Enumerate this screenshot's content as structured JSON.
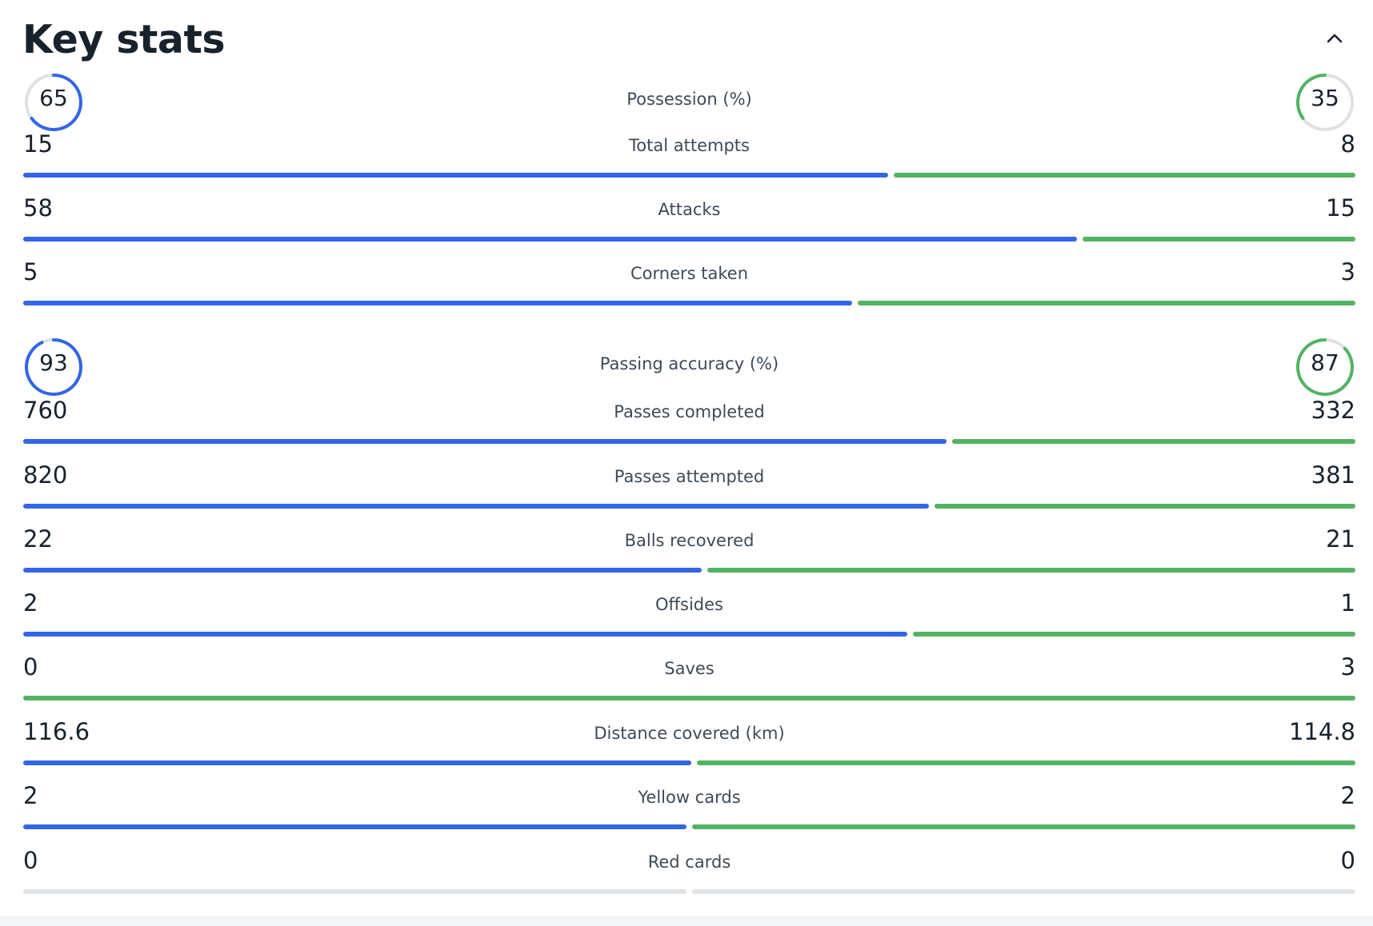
{
  "header": {
    "title": "Key stats"
  },
  "colors": {
    "home": "#3366e6",
    "away": "#52b365",
    "empty": "#e1e4e7",
    "ring_track": "#dfe2e5"
  },
  "rings": [
    {
      "label": "Possession (%)",
      "home": "65",
      "away": "35",
      "home_fraction": 0.65,
      "away_fraction": 0.35
    },
    {
      "label": "Passing accuracy (%)",
      "home": "93",
      "away": "87",
      "home_fraction": 0.93,
      "away_fraction": 0.87
    }
  ],
  "stats": [
    {
      "label": "Total attempts",
      "home": "15",
      "away": "8",
      "home_value": 15,
      "away_value": 8
    },
    {
      "label": "Attacks",
      "home": "58",
      "away": "15",
      "home_value": 58,
      "away_value": 15
    },
    {
      "label": "Corners taken",
      "home": "5",
      "away": "3",
      "home_value": 5,
      "away_value": 3
    },
    {
      "label": "Passes completed",
      "home": "760",
      "away": "332",
      "home_value": 760,
      "away_value": 332
    },
    {
      "label": "Passes attempted",
      "home": "820",
      "away": "381",
      "home_value": 820,
      "away_value": 381
    },
    {
      "label": "Balls recovered",
      "home": "22",
      "away": "21",
      "home_value": 22,
      "away_value": 21
    },
    {
      "label": "Offsides",
      "home": "2",
      "away": "1",
      "home_value": 2,
      "away_value": 1
    },
    {
      "label": "Saves",
      "home": "0",
      "away": "3",
      "home_value": 0,
      "away_value": 3
    },
    {
      "label": "Distance covered (km)",
      "home": "116.6",
      "away": "114.8",
      "home_value": 116.6,
      "away_value": 114.8
    },
    {
      "label": "Yellow cards",
      "home": "2",
      "away": "2",
      "home_value": 2,
      "away_value": 2
    },
    {
      "label": "Red cards",
      "home": "0",
      "away": "0",
      "home_value": 0,
      "away_value": 0
    }
  ]
}
